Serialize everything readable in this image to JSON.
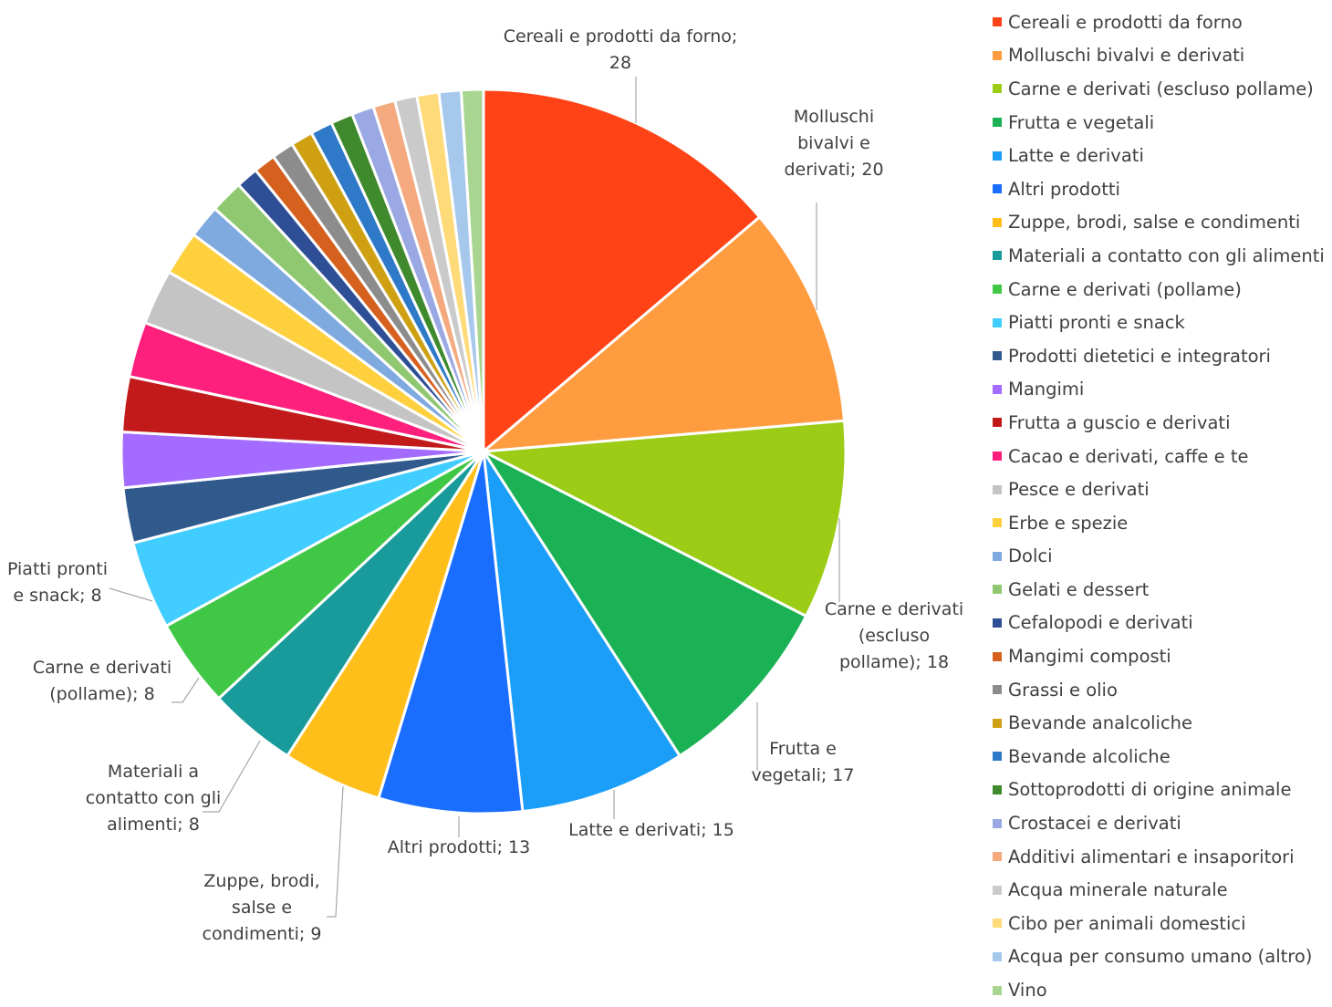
{
  "chart_data": {
    "type": "pie",
    "slices": [
      {
        "label": "Cereali e prodotti da forno",
        "value": 28,
        "color": "#FF4316",
        "data_label": [
          "Cereali e prodotti da forno;",
          "28"
        ]
      },
      {
        "label": "Molluschi bivalvi e derivati",
        "value": 20,
        "color": "#FF9C40",
        "data_label": [
          "Molluschi",
          "bivalvi e",
          "derivati; 20"
        ]
      },
      {
        "label": "Carne e derivati (escluso pollame)",
        "value": 18,
        "color": "#9CCC16",
        "data_label": [
          "Carne e derivati",
          "(escluso",
          "pollame); 18"
        ]
      },
      {
        "label": "Frutta e vegetali",
        "value": 17,
        "color": "#1BB155",
        "data_label": [
          "Frutta e",
          "vegetali; 17"
        ]
      },
      {
        "label": "Latte e derivati",
        "value": 15,
        "color": "#1B9EF7",
        "data_label": [
          "Latte e derivati; 15"
        ]
      },
      {
        "label": "Altri prodotti",
        "value": 13,
        "color": "#1A6EFF",
        "data_label": [
          "Altri prodotti; 13"
        ]
      },
      {
        "label": "Zuppe, brodi, salse e condimenti",
        "value": 9,
        "color": "#FFBF1A",
        "data_label": [
          "Zuppe, brodi,",
          "salse e",
          "condimenti; 9"
        ]
      },
      {
        "label": "Materiali a contatto con gli alimenti",
        "value": 8,
        "color": "#199B9B",
        "data_label": [
          "Materiali a",
          "contatto con gli",
          "alimenti; 8"
        ]
      },
      {
        "label": "Carne e derivati (pollame)",
        "value": 8,
        "color": "#41C746",
        "data_label": [
          "Carne e derivati",
          "(pollame); 8"
        ]
      },
      {
        "label": "Piatti pronti e snack",
        "value": 8,
        "color": "#41CDFF",
        "data_label": [
          "Piatti pronti",
          "e snack; 8"
        ]
      },
      {
        "label": "Prodotti dietetici e integratori",
        "value": 5,
        "color": "#305A8C",
        "data_label": []
      },
      {
        "label": "Mangimi",
        "value": 5,
        "color": "#A36BFF",
        "data_label": []
      },
      {
        "label": "Frutta a guscio e derivati",
        "value": 5,
        "color": "#C21A1A",
        "data_label": []
      },
      {
        "label": "Cacao e derivati, caffe e te",
        "value": 5,
        "color": "#FF1F7C",
        "data_label": []
      },
      {
        "label": "Pesce e derivati",
        "value": 5,
        "color": "#C4C4C4",
        "data_label": []
      },
      {
        "label": "Erbe e spezie",
        "value": 4,
        "color": "#FFD03E",
        "data_label": []
      },
      {
        "label": "Dolci",
        "value": 3,
        "color": "#7FAADF",
        "data_label": []
      },
      {
        "label": "Gelati e dessert",
        "value": 3,
        "color": "#8FC870",
        "data_label": []
      },
      {
        "label": "Cefalopodi e derivati",
        "value": 2,
        "color": "#2E4E96",
        "data_label": []
      },
      {
        "label": "Mangimi composti",
        "value": 2,
        "color": "#D6601E",
        "data_label": []
      },
      {
        "label": "Grassi e olio",
        "value": 2,
        "color": "#8C8C8C",
        "data_label": []
      },
      {
        "label": "Bevande analcoliche",
        "value": 2,
        "color": "#CFA112",
        "data_label": []
      },
      {
        "label": "Bevande alcoliche",
        "value": 2,
        "color": "#2E79C8",
        "data_label": []
      },
      {
        "label": "Sottoprodotti di origine animale",
        "value": 2,
        "color": "#3E8A2C",
        "data_label": []
      },
      {
        "label": "Crostacei e derivati",
        "value": 2,
        "color": "#9AA8E3",
        "data_label": []
      },
      {
        "label": "Additivi alimentari e insaporitori",
        "value": 2,
        "color": "#F4A97E",
        "data_label": []
      },
      {
        "label": "Acqua minerale naturale",
        "value": 2,
        "color": "#CACACA",
        "data_label": []
      },
      {
        "label": "Cibo per animali domestici",
        "value": 2,
        "color": "#FFDA78",
        "data_label": []
      },
      {
        "label": "Acqua per consumo umano (altro)",
        "value": 2,
        "color": "#A6C8EC",
        "data_label": []
      },
      {
        "label": "Vino",
        "value": 2,
        "color": "#A8D690",
        "data_label": []
      }
    ],
    "legend_position": "right",
    "title": ""
  }
}
